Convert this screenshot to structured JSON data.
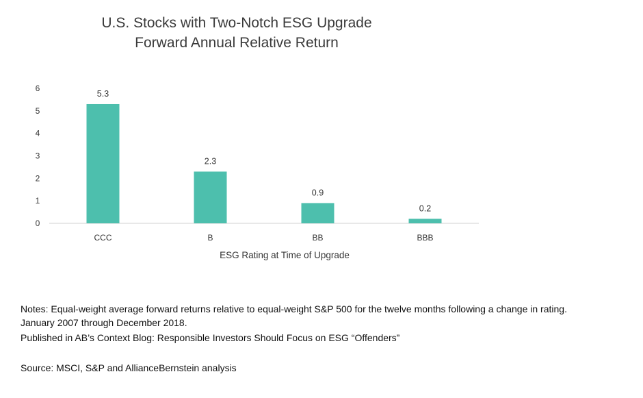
{
  "chart_data": {
    "type": "bar",
    "title": "U.S. Stocks with Two-Notch ESG Upgrade",
    "subtitle": "Forward Annual Relative Return",
    "xlabel": "ESG Rating at Time of Upgrade",
    "ylabel": "",
    "categories": [
      "CCC",
      "B",
      "BB",
      "BBB"
    ],
    "values": [
      5.3,
      2.3,
      0.9,
      0.2
    ],
    "data_labels": [
      "5.3",
      "2.3",
      "0.9",
      "0.2"
    ],
    "ylim": [
      0,
      6
    ],
    "yticks": [
      0,
      1,
      2,
      3,
      4,
      5,
      6
    ],
    "grid": false,
    "bar_color": "#4dbfad",
    "legend": "none"
  },
  "notes": {
    "line1": "Notes: Equal-weight average forward returns relative to equal-weight S&P 500 for the twelve months following a change in rating.",
    "line2": "January 2007 through December 2018.",
    "line3": "Published in AB’s Context Blog: Responsible Investors Should Focus on ESG “Offenders”",
    "source": "Source: MSCI, S&P and AllianceBernstein analysis"
  }
}
